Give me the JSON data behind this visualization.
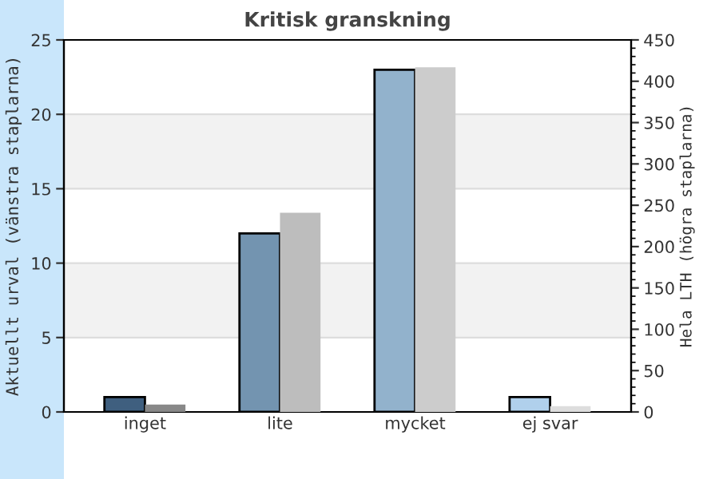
{
  "chart_data": {
    "type": "bar",
    "title": "Kritisk granskning",
    "ylabel": "Aktuellt urval (vänstra staplarna)",
    "y2label": "Hela LTH (högra staplarna)",
    "categories": [
      "inget",
      "lite",
      "mycket",
      "ej svar"
    ],
    "series": [
      {
        "colors": [
          "#3f5f7f",
          "#7394b0",
          "#92b2cc",
          "#b0d0ec"
        ],
        "values": [
          1,
          12,
          23,
          1
        ]
      },
      {
        "colors": [
          "#888888",
          "#bdbdbd",
          "#cccccc",
          "#dddddd"
        ],
        "values": [
          9,
          241,
          417,
          7
        ],
        "axis": "y2"
      }
    ],
    "ylim": [
      0,
      25
    ],
    "yticks": [
      0,
      5,
      10,
      15,
      20,
      25
    ],
    "y2lim": [
      0,
      450
    ],
    "y2ticks": [
      0,
      50,
      100,
      150,
      200,
      250,
      300,
      350,
      400,
      450
    ],
    "grid": "y",
    "legend": false,
    "bands": [
      {
        "axis": "y",
        "from": 5,
        "to": 10,
        "color": "#f2f2f2"
      },
      {
        "axis": "y",
        "from": 15,
        "to": 20,
        "color": "#f2f2f2"
      }
    ]
  }
}
